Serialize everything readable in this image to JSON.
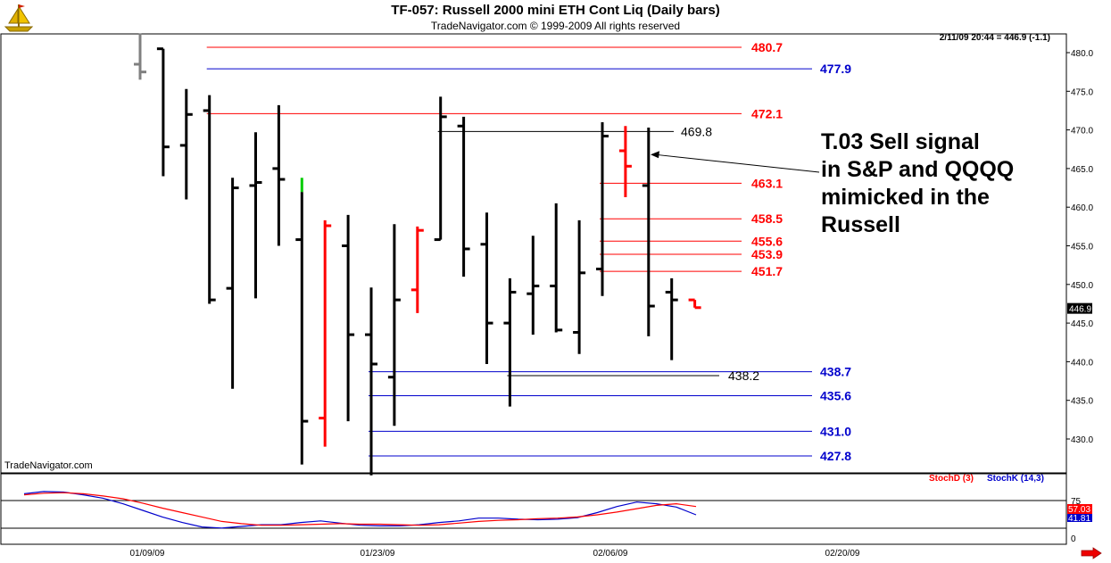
{
  "header": {
    "title": "TF-057:  Russell 2000 mini ETH Cont Liq  (Daily bars)",
    "subtitle": "TradeNavigator.com © 1999-2009 All rights reserved",
    "timestamp": "2/11/09 20:44 = 446.9 (-1.1)",
    "watermark": "TradeNavigator.com",
    "logo_icon": "trade-navigator-ship-icon"
  },
  "annotation": {
    "lines": [
      "T.03 Sell signal",
      "in S&P and QQQQ",
      "mimicked in the",
      "Russell"
    ]
  },
  "oscillator": {
    "stochd_label": "StochD (3)",
    "stochk_label": "StochK (14,3)",
    "stochd_color": "#ff0000",
    "stochk_color": "#0000cc",
    "ref_level_label": "75",
    "bottom_label": "0",
    "stochd_value": "57.03",
    "stochk_value": "41.81",
    "stochd_values": [
      78,
      81,
      82,
      80,
      76,
      71,
      63,
      54,
      46,
      38,
      30,
      26,
      23,
      23,
      24,
      25,
      26,
      25,
      25,
      24,
      23,
      24,
      27,
      30,
      32,
      33,
      35,
      36,
      38,
      42,
      47,
      53,
      59,
      62,
      57
    ],
    "stochk_values": [
      80,
      84,
      83,
      78,
      72,
      62,
      50,
      38,
      28,
      20,
      18,
      21,
      24,
      24,
      28,
      31,
      27,
      23,
      22,
      22,
      24,
      28,
      31,
      36,
      36,
      34,
      33,
      34,
      37,
      46,
      57,
      65,
      62,
      56,
      42
    ]
  },
  "chart_data": {
    "type": "ohlc",
    "price_axis": {
      "ticks": [
        430,
        435,
        440,
        445,
        450,
        455,
        460,
        465,
        470,
        475,
        480
      ],
      "range": [
        426,
        483
      ]
    },
    "date_ticks": [
      "01/09/09",
      "01/23/09",
      "02/06/09",
      "02/20/09"
    ],
    "last_price": "446.9",
    "colors": {
      "normal": "#000000",
      "down_signal": "#ff0000",
      "up_signal": "#00cc00",
      "partial": "#808080"
    },
    "bars": [
      {
        "date": "01/08/09",
        "open": 478.5,
        "high": 482.5,
        "low": 476.5,
        "close": 477.5,
        "color": "partial"
      },
      {
        "date": "01/09/09",
        "open": 480.5,
        "high": 480.5,
        "low": 464.0,
        "close": 467.8,
        "color": "normal"
      },
      {
        "date": "01/12/09",
        "open": 468.0,
        "high": 475.3,
        "low": 461.0,
        "close": 472.0,
        "color": "normal"
      },
      {
        "date": "01/13/09",
        "open": 472.5,
        "high": 474.5,
        "low": 447.5,
        "close": 448.0,
        "color": "normal"
      },
      {
        "date": "01/14/09",
        "open": 449.5,
        "high": 463.8,
        "low": 436.5,
        "close": 462.5,
        "color": "normal"
      },
      {
        "date": "01/15/09",
        "open": 462.8,
        "high": 469.7,
        "low": 448.2,
        "close": 463.2,
        "color": "normal"
      },
      {
        "date": "01/16/09",
        "open": 465.0,
        "high": 473.2,
        "low": 455.0,
        "close": 463.6,
        "color": "normal"
      },
      {
        "date": "01/20/09",
        "open": 455.8,
        "high": 463.8,
        "low": 426.7,
        "close": 432.3,
        "color": "up_signal"
      },
      {
        "date": "01/21/09",
        "open": 432.7,
        "high": 458.3,
        "low": 429.0,
        "close": 457.6,
        "color": "down_signal"
      },
      {
        "date": "01/22/09",
        "open": 455.0,
        "high": 459.0,
        "low": 432.3,
        "close": 443.5,
        "color": "normal"
      },
      {
        "date": "01/23/09",
        "open": 443.5,
        "high": 449.6,
        "low": 425.3,
        "close": 439.7,
        "color": "normal"
      },
      {
        "date": "01/26/09",
        "open": 438.0,
        "high": 457.8,
        "low": 431.7,
        "close": 448.0,
        "color": "normal"
      },
      {
        "date": "01/27/09",
        "open": 449.3,
        "high": 457.5,
        "low": 446.3,
        "close": 457.0,
        "color": "down_signal"
      },
      {
        "date": "01/28/09",
        "open": 455.8,
        "high": 474.3,
        "low": 455.8,
        "close": 471.7,
        "color": "normal"
      },
      {
        "date": "01/29/09",
        "open": 470.5,
        "high": 471.7,
        "low": 451.0,
        "close": 454.6,
        "color": "normal"
      },
      {
        "date": "01/30/09",
        "open": 455.2,
        "high": 459.3,
        "low": 439.7,
        "close": 445.0,
        "color": "normal"
      },
      {
        "date": "02/02/09",
        "open": 445.0,
        "high": 450.8,
        "low": 434.2,
        "close": 449.0,
        "color": "normal"
      },
      {
        "date": "02/03/09",
        "open": 448.8,
        "high": 456.3,
        "low": 443.5,
        "close": 449.8,
        "color": "normal"
      },
      {
        "date": "02/04/09",
        "open": 449.8,
        "high": 460.5,
        "low": 443.8,
        "close": 444.1,
        "color": "normal"
      },
      {
        "date": "02/05/09",
        "open": 443.8,
        "high": 458.3,
        "low": 441.0,
        "close": 451.5,
        "color": "normal"
      },
      {
        "date": "02/06/09",
        "open": 452.0,
        "high": 471.0,
        "low": 448.5,
        "close": 469.2,
        "color": "normal"
      },
      {
        "date": "02/09/09",
        "open": 467.3,
        "high": 470.5,
        "low": 461.3,
        "close": 465.3,
        "color": "down_signal"
      },
      {
        "date": "02/10/09",
        "open": 462.8,
        "high": 470.3,
        "low": 443.3,
        "close": 447.2,
        "color": "normal"
      },
      {
        "date": "02/11/09",
        "open": 449.0,
        "high": 450.8,
        "low": 440.2,
        "close": 448.0,
        "color": "normal"
      },
      {
        "date": "02/12/09",
        "open": 448.0,
        "high": 448.0,
        "low": 447.0,
        "close": 447.0,
        "color": "down_signal"
      }
    ],
    "levels": [
      {
        "label": "480.7",
        "value": 480.7,
        "color": "#ff0000",
        "from_bar": 3
      },
      {
        "label": "477.9",
        "value": 477.9,
        "color": "#0000cc",
        "from_bar": 3
      },
      {
        "label": "472.1",
        "value": 472.1,
        "color": "#ff0000",
        "from_bar": 3
      },
      {
        "label": "469.8",
        "value": 469.8,
        "color": "#000000",
        "from_bar": 13
      },
      {
        "label": "463.1",
        "value": 463.1,
        "color": "#ff0000",
        "from_bar": 20
      },
      {
        "label": "458.5",
        "value": 458.5,
        "color": "#ff0000",
        "from_bar": 20
      },
      {
        "label": "455.6",
        "value": 455.6,
        "color": "#ff0000",
        "from_bar": 20
      },
      {
        "label": "453.9",
        "value": 453.9,
        "color": "#ff0000",
        "from_bar": 20
      },
      {
        "label": "451.7",
        "value": 451.7,
        "color": "#ff0000",
        "from_bar": 20
      },
      {
        "label": "438.7",
        "value": 438.7,
        "color": "#0000cc",
        "from_bar": 10
      },
      {
        "label": "438.2",
        "value": 438.2,
        "color": "#000000",
        "from_bar": 16
      },
      {
        "label": "435.6",
        "value": 435.6,
        "color": "#0000cc",
        "from_bar": 10
      },
      {
        "label": "431.0",
        "value": 431.0,
        "color": "#0000cc",
        "from_bar": 10
      },
      {
        "label": "427.8",
        "value": 427.8,
        "color": "#0000cc",
        "from_bar": 10
      }
    ]
  }
}
